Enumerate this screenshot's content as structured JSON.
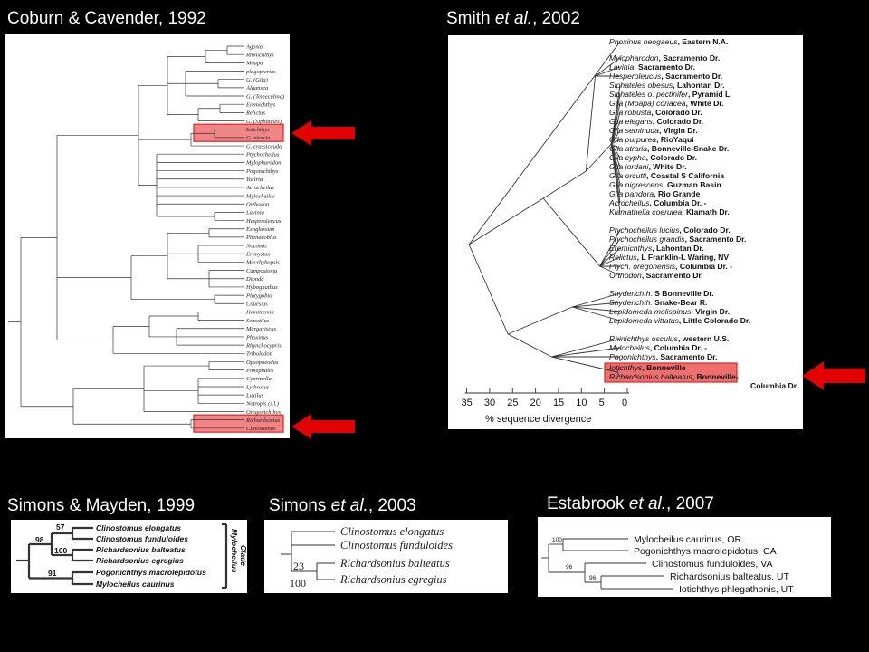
{
  "titles": {
    "coburn": "Coburn & Cavender, 1992",
    "smith_a": "Smith ",
    "smith_b": "et al.",
    "smith_c": ", 2002",
    "mayden": "Simons & Mayden, 1999",
    "simons_a": "Simons ",
    "simons_b": "et al.",
    "simons_c": ", 2003",
    "estabrook_a": "Estabrook ",
    "estabrook_b": "et al.",
    "estabrook_c": ", 2007"
  },
  "colors": {
    "highlight": "#e52020",
    "arrow": "#e30000"
  },
  "coburn_taxa": [
    "Agosia",
    "Rhinichthys",
    "Moapa",
    "plagopterins",
    "G. (Gila)",
    "Algansea",
    "G. (Temeculina)",
    "Eremichthys",
    "Relictus",
    "G. (Siphateles)",
    "Iotichthys",
    "G. atraria",
    "G. crassicauda",
    "Ptychocheilus",
    "Mylopharodon",
    "Pogonichthys",
    "Yuriria",
    "Acrocheilus",
    "Mylocheilus",
    "Orthodon",
    "Lavinia",
    "Hesperoleucus",
    "Exoglossum",
    "Phenacobius",
    "Nocomis",
    "Erimystax",
    "Macrhybopsis",
    "Campostoma",
    "Dionda",
    "Hybognathus",
    "Platygobio",
    "Couesius",
    "Hemitremia",
    "Semotilus",
    "Margariscus",
    "Phoxinus",
    "Rhynchocypris",
    "Tribolodon",
    "Opsopoeodus",
    "Pimephales",
    "Cyprinella",
    "Lythrurus",
    "Luxilus",
    "Notropis (s.l.)",
    "Oregonichthys",
    "Richardsonius",
    "Clinostomus"
  ],
  "smith_taxa": [
    {
      "sp": "Phoxinus neogaeus",
      "loc": ", Eastern N.A."
    },
    {
      "sp": "Mylopharodon",
      "loc": ", Sacramento Dr."
    },
    {
      "sp": "Lavinia",
      "loc": ", Sacramento Dr."
    },
    {
      "sp": "Hesperoleucus",
      "loc": ", Sacramento Dr."
    },
    {
      "sp": "Siphateles obesus",
      "loc": ", Lahontan Dr."
    },
    {
      "sp": "Siphateles o. pectinifer",
      "loc": ", Pyramid L."
    },
    {
      "sp": "Gila (Moapa) coriacea",
      "loc": ", White Dr."
    },
    {
      "sp": "Gila robusta",
      "loc": ", Colorado Dr."
    },
    {
      "sp": "Gila elegans",
      "loc": ", Colorado Dr."
    },
    {
      "sp": "Gila seminuda",
      "loc": ", Virgin Dr."
    },
    {
      "sp": "Gila purpurea",
      "loc": ", RioYaqui"
    },
    {
      "sp": "Gila atraria",
      "loc": ", Bonneville-Snake Dr."
    },
    {
      "sp": "Gila cypha",
      "loc": ", Colorado Dr."
    },
    {
      "sp": "Gila jordani",
      "loc": ", White Dr."
    },
    {
      "sp": "Gila orcutti",
      "loc": ", Coastal S California"
    },
    {
      "sp": "Gila nigrescens",
      "loc": ", Guzman Basin"
    },
    {
      "sp": "Gila pandora",
      "loc": ", Rio Grande"
    },
    {
      "sp": "Acrocheilus",
      "loc": ", Columbia Dr. -"
    },
    {
      "sp": "Klamathella coerulea",
      "loc": ", Klamath Dr."
    },
    {
      "sp": "Ptychocheilus lucius",
      "loc": ", Colorado Dr."
    },
    {
      "sp": "Ptychocheilus grandis",
      "loc": ", Sacramento Dr."
    },
    {
      "sp": "Eremichthys",
      "loc": ", Lahontan Dr."
    },
    {
      "sp": "Relictus",
      "loc": ", L Franklin-L Waring, NV"
    },
    {
      "sp": "Ptych. oregonensis",
      "loc": ", Columbia Dr. -"
    },
    {
      "sp": "Orthodon",
      "loc": ", Sacramento Dr."
    },
    {
      "sp": "Snyderichth.",
      "loc": " S Bonneville Dr."
    },
    {
      "sp": "Snyderichth.",
      "loc": " Snake-Bear R."
    },
    {
      "sp": "Lepidomeda molispinus",
      "loc": ", Virgin Dr."
    },
    {
      "sp": "Lepidomeda vittatus",
      "loc": ", Little Colorado Dr."
    },
    {
      "sp": "Rhinichthys osculus",
      "loc": ", western U.S."
    },
    {
      "sp": "Mylocheilus",
      "loc": ", Columbia Dr. -"
    },
    {
      "sp": "Pogonichthys",
      "loc": ", Sacramento Dr."
    },
    {
      "sp": "Iotichthys",
      "loc": ", Bonneville"
    },
    {
      "sp": "Richardsonius balteatus",
      "loc": ", Bonneville-"
    },
    {
      "sp": "",
      "loc": "Columbia Dr."
    }
  ],
  "smith_axis": {
    "ticks": [
      "35",
      "30",
      "25",
      "20",
      "15",
      "10",
      "5",
      "0"
    ],
    "label": "% sequence divergence"
  },
  "mayden_taxa": [
    "Clinostomus elongatus",
    "Clinostomus funduloides",
    "Richardsonius balteatus",
    "Richardsonius egregius",
    "Pogonichthys macrolepidotus",
    "Mylocheilus caurinus"
  ],
  "mayden_support": [
    "57",
    "98",
    "100",
    "91"
  ],
  "mayden_clade": [
    "Mylocheilus",
    "Clade"
  ],
  "simons_taxa": [
    "Clinostomus elongatus",
    "Clinostomus funduloides",
    "Richardsonius balteatus",
    "Richardsonius egregius"
  ],
  "simons_support": [
    "23",
    "100"
  ],
  "estabrook_taxa": [
    "Mylocheilus caurinus, OR",
    "Pogonichthys macrolepidotus, CA",
    "Clinostomus funduloides, VA",
    "Richardsonius balteatus, UT",
    "Iotichthys phlegathonis, UT"
  ],
  "estabrook_support": [
    "100",
    "96",
    "96"
  ]
}
